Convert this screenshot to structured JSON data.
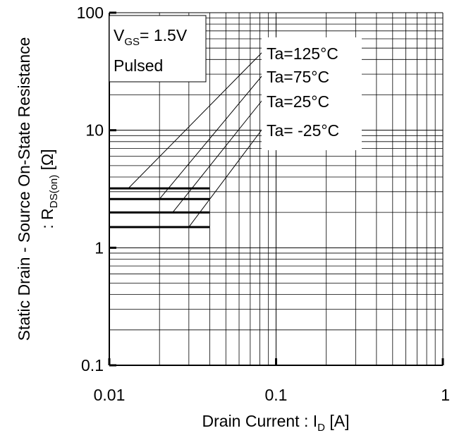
{
  "chart_data": {
    "type": "line",
    "x_scale": "log",
    "y_scale": "log",
    "xlim": [
      0.01,
      1
    ],
    "ylim": [
      0.1,
      100
    ],
    "grid": true,
    "x_ticks": [
      "0.01",
      "0.1",
      "1"
    ],
    "y_ticks": [
      "0.1",
      "1",
      "10",
      "100"
    ],
    "xlabel": {
      "main": "Drain Current : I",
      "sub": "D",
      "unit": " [A]"
    },
    "ylabel": {
      "line1": "Static Drain - Source On-State Resistance",
      "prefix": ": R",
      "sub": "DS(on)",
      "unit": " [Ω]"
    },
    "conditions": {
      "vgs_main": "V",
      "vgs_sub": "GS",
      "vgs_value": "= 1.5V",
      "mode": "Pulsed"
    },
    "series": [
      {
        "name": "Ta=125°C",
        "x": [
          0.01,
          0.04
        ],
        "y": [
          3.2,
          3.2
        ],
        "label_point": [
          0.013,
          3.2
        ]
      },
      {
        "name": "Ta=75°C",
        "x": [
          0.01,
          0.04
        ],
        "y": [
          2.6,
          2.6
        ],
        "label_point": [
          0.02,
          2.6
        ]
      },
      {
        "name": "Ta=25°C",
        "x": [
          0.01,
          0.04
        ],
        "y": [
          2.0,
          2.0
        ],
        "label_point": [
          0.024,
          2.0
        ]
      },
      {
        "name": "Ta= -25°C",
        "x": [
          0.01,
          0.04
        ],
        "y": [
          1.5,
          1.5
        ],
        "label_point": [
          0.03,
          1.5
        ]
      }
    ],
    "colors": {
      "line": "#000000",
      "grid": "#000000",
      "background": "#ffffff"
    }
  }
}
